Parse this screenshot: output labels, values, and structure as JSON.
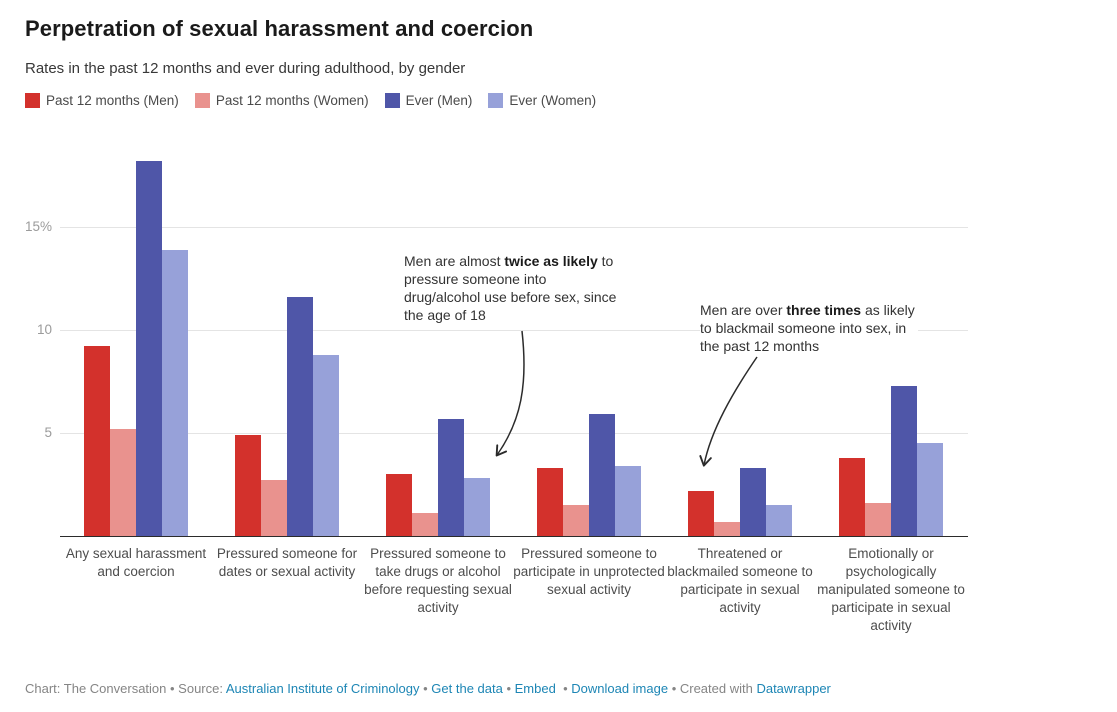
{
  "chart_data": {
    "type": "bar",
    "title": "Perpetration of sexual harassment and coercion",
    "subtitle": "Rates in the past 12 months and ever during adulthood, by gender",
    "grid": "horizontal",
    "legend_position": "top",
    "ylim": [
      0,
      18.5
    ],
    "y_ticks": [
      {
        "value": 5,
        "label": "5"
      },
      {
        "value": 10,
        "label": "10"
      },
      {
        "value": 15,
        "label": "15%"
      }
    ],
    "categories": [
      "Any sexual harassment and coercion",
      "Pressured someone for dates or sexual activity",
      "Pressured someone to take drugs or alcohol before requesting sexual activity",
      "Pressured someone to participate in unprotected sexual activity",
      "Threatened or blackmailed someone to participate in sexual activity",
      "Emotionally or psychologically manipulated someone to participate in sexual activity"
    ],
    "series": [
      {
        "name": "Past 12 months (Men)",
        "color": "#d3312c",
        "values": [
          9.2,
          4.9,
          3.0,
          3.3,
          2.2,
          3.8
        ]
      },
      {
        "name": "Past 12 months (Women)",
        "color": "#e9928e",
        "values": [
          5.2,
          2.7,
          1.1,
          1.5,
          0.7,
          1.6
        ]
      },
      {
        "name": "Ever (Men)",
        "color": "#4f56a8",
        "values": [
          18.2,
          11.6,
          5.7,
          5.9,
          3.3,
          7.3
        ]
      },
      {
        "name": "Ever (Women)",
        "color": "#97a1d9",
        "values": [
          13.9,
          8.8,
          2.8,
          3.4,
          1.5,
          4.5
        ]
      }
    ],
    "annotations": [
      {
        "pre": "Men are almost ",
        "bold": "twice as likely",
        "post": " to pressure someone into drug/alcohol use before sex, since the age of 18"
      },
      {
        "pre": "Men are over ",
        "bold": "three times",
        "post": " as likely to blackmail someone into sex, in the past 12 months"
      }
    ]
  },
  "footer": {
    "parts": [
      {
        "text": "Chart: The Conversation • Source: ",
        "link": false
      },
      {
        "text": "Australian Institute of Criminology",
        "link": true
      },
      {
        "text": " • ",
        "link": false
      },
      {
        "text": "Get the data",
        "link": true
      },
      {
        "text": " • ",
        "link": false
      },
      {
        "text": "Embed",
        "link": true
      },
      {
        "text": "  • ",
        "link": false
      },
      {
        "text": "Download image",
        "link": true
      },
      {
        "text": " • Created with ",
        "link": false
      },
      {
        "text": "Datawrapper",
        "link": true
      }
    ]
  }
}
